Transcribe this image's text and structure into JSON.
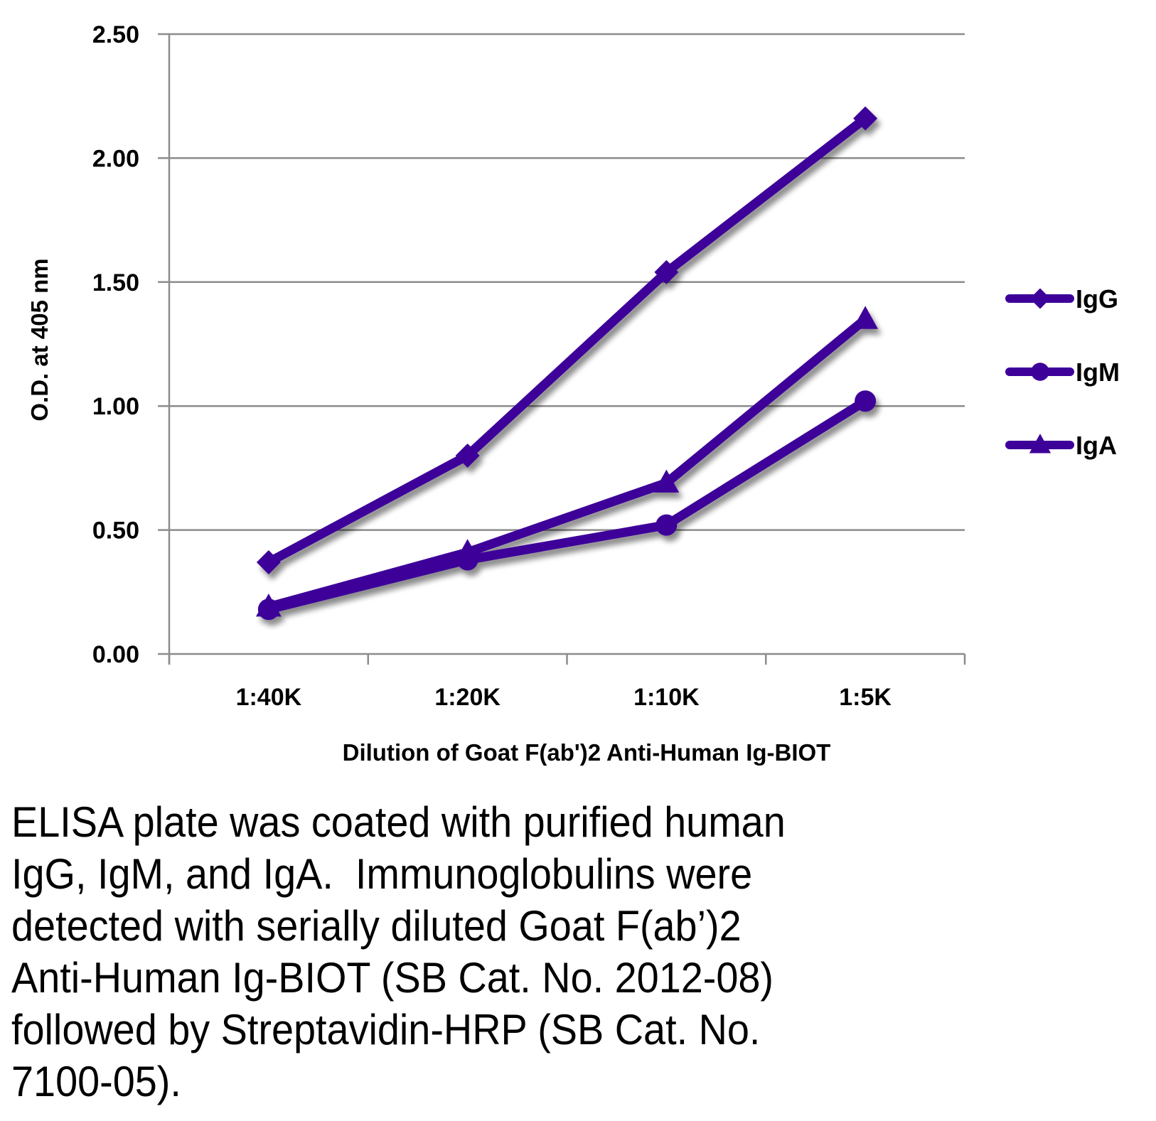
{
  "chart_data": {
    "type": "line",
    "title": "",
    "xlabel": "Dilution of Goat F(ab')2 Anti-Human Ig-BIOT",
    "ylabel": "O.D. at 405 nm",
    "categories": [
      "1:40K",
      "1:20K",
      "1:10K",
      "1:5K"
    ],
    "ylim": [
      0,
      2.5
    ],
    "yticks": [
      "0.00",
      "0.50",
      "1.00",
      "1.50",
      "2.00",
      "2.50"
    ],
    "ytick_values": [
      0,
      0.5,
      1.0,
      1.5,
      2.0,
      2.5
    ],
    "grid": true,
    "legend_position": "right",
    "series": [
      {
        "name": "IgG",
        "marker": "diamond",
        "color": "#3d0099",
        "values": [
          0.37,
          0.8,
          1.54,
          2.16
        ]
      },
      {
        "name": "IgM",
        "marker": "circle",
        "color": "#3d0099",
        "values": [
          0.18,
          0.38,
          0.52,
          1.02
        ]
      },
      {
        "name": "IgA",
        "marker": "triangle",
        "color": "#3d0099",
        "values": [
          0.19,
          0.41,
          0.69,
          1.35
        ]
      }
    ]
  },
  "caption": {
    "lines": [
      "ELISA plate was coated with purified human",
      "IgG, IgM, and IgA.  Immunoglobulins were",
      "detected with serially diluted Goat F(ab’)2",
      "Anti-Human Ig-BIOT (SB Cat. No. 2012-08)",
      "followed by Streptavidin-HRP (SB Cat. No.",
      "7100-05)."
    ]
  }
}
